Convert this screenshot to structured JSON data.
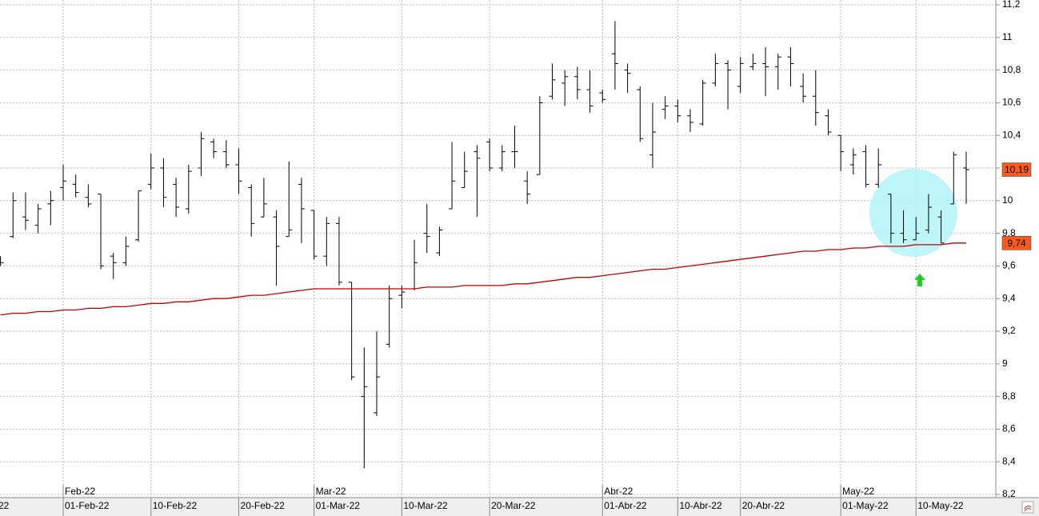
{
  "left_edge_label": "22",
  "chart_data": {
    "type": "ohlc",
    "categories": [
      null,
      null,
      null,
      null,
      null,
      "01-Feb-22",
      null,
      null,
      null,
      null,
      null,
      null,
      "10-Feb-22",
      null,
      null,
      null,
      null,
      null,
      null,
      "20-Feb-22",
      null,
      null,
      null,
      null,
      null,
      "01-Mar-22",
      null,
      null,
      null,
      null,
      null,
      null,
      "10-Mar-22",
      null,
      null,
      null,
      null,
      null,
      null,
      "20-Mar-22",
      null,
      null,
      null,
      null,
      null,
      null,
      null,
      null,
      "01-Abr-22",
      null,
      null,
      null,
      null,
      null,
      "10-Abr-22",
      null,
      null,
      null,
      null,
      "20-Abr-22",
      null,
      null,
      null,
      null,
      null,
      null,
      null,
      "01-May-22",
      null,
      null,
      null,
      null,
      null,
      "10-May-22",
      null,
      null,
      null,
      null
    ],
    "month_labels": [
      null,
      null,
      null,
      null,
      null,
      "Feb-22",
      null,
      null,
      null,
      null,
      null,
      null,
      null,
      null,
      null,
      null,
      null,
      null,
      null,
      null,
      null,
      null,
      null,
      null,
      null,
      "Mar-22",
      null,
      null,
      null,
      null,
      null,
      null,
      null,
      null,
      null,
      null,
      null,
      null,
      null,
      null,
      null,
      null,
      null,
      null,
      null,
      null,
      null,
      null,
      "Abr-22",
      null,
      null,
      null,
      null,
      null,
      null,
      null,
      null,
      null,
      null,
      null,
      null,
      null,
      null,
      null,
      null,
      null,
      null,
      "May-22",
      null,
      null,
      null,
      null,
      null,
      null,
      null,
      null,
      null,
      null
    ],
    "open": [
      9.64,
      9.78,
      9.9,
      9.85,
      9.98,
      10.08,
      10.1,
      10.02,
      10.04,
      9.66,
      9.62,
      9.76,
      10.1,
      10.2,
      10.1,
      9.95,
      10.2,
      10.36,
      10.3,
      10.22,
      10.08,
      9.9,
      9.9,
      9.78,
      10.1,
      9.94,
      9.66,
      9.86,
      9.5,
      8.8,
      8.7,
      9.12,
      9.42,
      9.46,
      9.8,
      9.68,
      9.95,
      10.08,
      10.3,
      10.36,
      10.2,
      10.3,
      10.12,
      10.16,
      10.64,
      10.72,
      10.76,
      10.68,
      10.66,
      10.9,
      10.8,
      10.68,
      10.28,
      10.56,
      10.58,
      10.52,
      10.47,
      10.72,
      10.84,
      10.7,
      10.82,
      10.84,
      10.82,
      10.88,
      10.7,
      10.64,
      10.52,
      10.4,
      10.22,
      10.3,
      10.1,
      10.04,
      9.8,
      9.76,
      9.82,
      9.9,
      9.98,
      10.2
    ],
    "high": [
      9.66,
      10.05,
      10.05,
      9.98,
      10.06,
      10.22,
      10.16,
      10.1,
      10.04,
      9.68,
      9.78,
      10.06,
      10.29,
      10.26,
      10.14,
      10.22,
      10.42,
      10.38,
      10.37,
      10.32,
      10.1,
      10.14,
      9.94,
      10.24,
      10.14,
      9.94,
      9.9,
      9.9,
      9.5,
      9.1,
      9.2,
      9.48,
      9.48,
      9.76,
      9.98,
      9.84,
      10.36,
      10.3,
      10.34,
      10.38,
      10.34,
      10.46,
      10.18,
      10.64,
      10.84,
      10.8,
      10.82,
      10.8,
      10.68,
      11.1,
      10.84,
      10.7,
      10.6,
      10.64,
      10.62,
      10.56,
      10.74,
      10.9,
      10.86,
      10.88,
      10.9,
      10.94,
      10.9,
      10.94,
      10.78,
      10.8,
      10.56,
      10.4,
      10.32,
      10.34,
      10.32,
      10.04,
      9.94,
      9.9,
      10.04,
      9.94,
      10.3,
      10.3
    ],
    "low": [
      9.6,
      9.77,
      9.82,
      9.8,
      9.85,
      10.0,
      10.02,
      9.96,
      9.58,
      9.52,
      9.6,
      9.75,
      10.07,
      9.96,
      9.9,
      9.92,
      10.15,
      10.26,
      10.2,
      10.04,
      9.78,
      9.9,
      9.48,
      9.78,
      9.74,
      9.64,
      9.6,
      9.48,
      8.9,
      8.36,
      8.68,
      9.1,
      9.34,
      9.45,
      9.68,
      9.66,
      9.95,
      10.08,
      9.9,
      10.18,
      10.18,
      10.2,
      9.98,
      10.16,
      10.62,
      10.58,
      10.62,
      10.54,
      10.6,
      10.68,
      10.66,
      10.36,
      10.2,
      10.5,
      10.48,
      10.42,
      10.46,
      10.7,
      10.56,
      10.66,
      10.8,
      10.64,
      10.68,
      10.7,
      10.6,
      10.46,
      10.4,
      10.18,
      10.16,
      10.08,
      10.08,
      9.74,
      9.74,
      9.76,
      9.8,
      9.74,
      9.98,
      9.98
    ],
    "close": [
      9.62,
      10.0,
      9.88,
      9.95,
      10.0,
      10.12,
      10.05,
      9.98,
      9.6,
      9.62,
      9.72,
      10.06,
      10.2,
      10.02,
      9.96,
      10.18,
      10.38,
      10.3,
      10.22,
      10.12,
      9.86,
      9.98,
      9.72,
      9.82,
      9.95,
      9.66,
      9.86,
      9.5,
      8.92,
      8.86,
      8.92,
      9.4,
      9.44,
      9.62,
      9.78,
      9.82,
      10.12,
      10.18,
      10.26,
      10.2,
      10.3,
      10.3,
      10.04,
      10.6,
      10.74,
      10.76,
      10.68,
      10.58,
      10.62,
      10.84,
      10.78,
      10.38,
      10.42,
      10.58,
      10.52,
      10.48,
      10.72,
      10.84,
      10.8,
      10.84,
      10.84,
      10.82,
      10.88,
      10.84,
      10.64,
      10.54,
      10.42,
      10.3,
      10.28,
      10.1,
      10.22,
      9.8,
      9.76,
      9.8,
      9.96,
      9.74,
      10.28,
      10.19
    ],
    "ma": [
      9.3,
      9.31,
      9.31,
      9.32,
      9.32,
      9.33,
      9.33,
      9.34,
      9.34,
      9.35,
      9.35,
      9.36,
      9.37,
      9.37,
      9.38,
      9.38,
      9.39,
      9.4,
      9.4,
      9.41,
      9.42,
      9.42,
      9.43,
      9.44,
      9.45,
      9.46,
      9.46,
      9.46,
      9.46,
      9.46,
      9.46,
      9.46,
      9.46,
      9.46,
      9.47,
      9.47,
      9.47,
      9.48,
      9.48,
      9.48,
      9.48,
      9.49,
      9.49,
      9.5,
      9.51,
      9.52,
      9.53,
      9.53,
      9.54,
      9.55,
      9.56,
      9.57,
      9.58,
      9.58,
      9.59,
      9.6,
      9.61,
      9.62,
      9.63,
      9.64,
      9.65,
      9.66,
      9.67,
      9.68,
      9.69,
      9.69,
      9.7,
      9.7,
      9.71,
      9.71,
      9.72,
      9.72,
      9.72,
      9.73,
      9.73,
      9.73,
      9.74,
      9.74
    ],
    "bar_color": "#000000",
    "ma_color": "#c00000",
    "label_color": "#ff5a1e",
    "close_label": "10,19",
    "ma_label": "9,74",
    "ylim": [
      8.2,
      11.2
    ],
    "yticks": [
      {
        "value": 8.2,
        "label": "8,2"
      },
      {
        "value": 8.4,
        "label": "8,4"
      },
      {
        "value": 8.6,
        "label": "8,6"
      },
      {
        "value": 8.8,
        "label": "8,8"
      },
      9,
      {
        "value": 9.2,
        "label": "9,2"
      },
      {
        "value": 9.4,
        "label": "9,4"
      },
      {
        "value": 9.6,
        "label": "9,6"
      },
      {
        "value": 9.8,
        "label": "9,8"
      },
      10,
      {
        "value": 10.2,
        "label": "10,2"
      },
      {
        "value": 10.4,
        "label": "10,4"
      },
      {
        "value": 10.6,
        "label": "10,6"
      },
      {
        "value": 10.8,
        "label": "10,8"
      },
      11,
      {
        "value": 11.2,
        "label": "11,2"
      }
    ],
    "grid": true
  }
}
